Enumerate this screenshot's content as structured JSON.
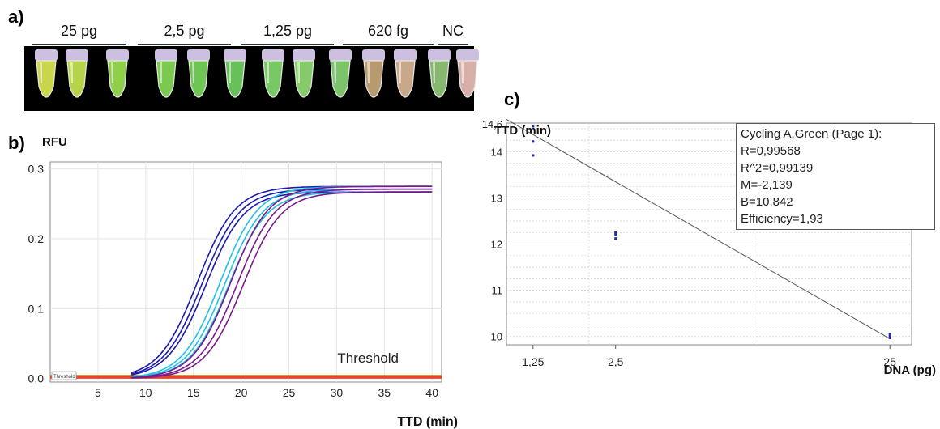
{
  "panel_a": {
    "label": "a)",
    "groups": [
      {
        "label": "25 pg",
        "tubes": 3
      },
      {
        "label": "2,5 pg",
        "tubes": 3
      },
      {
        "label": "1,25 pg",
        "tubes": 3
      },
      {
        "label": "620 fg",
        "tubes": 3
      },
      {
        "label": "NC",
        "tubes": 1
      }
    ],
    "tube_colors": [
      "#c9d64a",
      "#b7d34a",
      "#8fcf4c",
      "#7bc94e",
      "#6fc553",
      "#67c05a",
      "#78c866",
      "#86cb6a",
      "#7bc46a",
      "#b89a70",
      "#c9a88a",
      "#86b870",
      "#d6b0a8"
    ]
  },
  "chart_data": [
    {
      "id": "amplification",
      "panel_label": "b)",
      "type": "line",
      "ylabel": "RFU",
      "xlabel": "TTD (min)",
      "xlim": [
        0,
        41
      ],
      "ylim": [
        -0.005,
        0.31
      ],
      "xticks": [
        "5",
        "10",
        "15",
        "20",
        "25",
        "30",
        "35",
        "40"
      ],
      "xtick_values": [
        5,
        10,
        15,
        20,
        25,
        30,
        35,
        40
      ],
      "yticks": [
        "0,0",
        "0,1",
        "0,2",
        "0,3"
      ],
      "ytick_values": [
        0,
        0.1,
        0.2,
        0.3
      ],
      "grid": true,
      "threshold_label": "Threshold",
      "threshold_tag": "Threshold",
      "threshold_value": 0.003,
      "sample_group_colors": [
        "#1a1ab0",
        "#22c0e0",
        "#7a1a8a"
      ],
      "sample_group_midpoints": [
        [
          15.4,
          15.9,
          16.3
        ],
        [
          17.8,
          18.3,
          18.7
        ],
        [
          18.9,
          19.6,
          20.2
        ]
      ],
      "sample_plateau": 0.275,
      "negative_colors": [
        "#e04040",
        "#f07a10",
        "#c08000"
      ],
      "negative_levels": [
        0.001,
        0.003,
        0.004
      ]
    },
    {
      "id": "standard_curve",
      "panel_label": "c)",
      "type": "scatter",
      "ylabel": "TTD (min)",
      "xlabel": "DNA (pg)",
      "xscale": "log",
      "xticks": [
        "1,25",
        "2,5",
        "25"
      ],
      "xtick_values": [
        1.25,
        2.5,
        25
      ],
      "yticks": [
        "10",
        "11",
        "12",
        "13",
        "14",
        "14,6"
      ],
      "ytick_values": [
        10,
        11,
        12,
        13,
        14,
        14.6
      ],
      "ylim": [
        9.82,
        14.62
      ],
      "grid": true,
      "points": [
        {
          "x": 1.25,
          "y": 14.55
        },
        {
          "x": 1.25,
          "y": 14.22
        },
        {
          "x": 1.25,
          "y": 13.92
        },
        {
          "x": 2.5,
          "y": 12.25
        },
        {
          "x": 2.5,
          "y": 12.2
        },
        {
          "x": 2.5,
          "y": 12.12
        },
        {
          "x": 25,
          "y": 10.05
        },
        {
          "x": 25,
          "y": 10.0
        },
        {
          "x": 25,
          "y": 9.97
        }
      ],
      "fit_line": [
        {
          "x": 1.0,
          "y": 14.7
        },
        {
          "x": 25,
          "y": 9.95
        }
      ],
      "stats": {
        "title": "Cycling A.Green (Page 1):",
        "r": "R=0,99568",
        "r2": "R^2=0,99139",
        "m": "M=-2,139",
        "b": "B=10,842",
        "efficiency": "Efficiency=1,93"
      }
    }
  ]
}
